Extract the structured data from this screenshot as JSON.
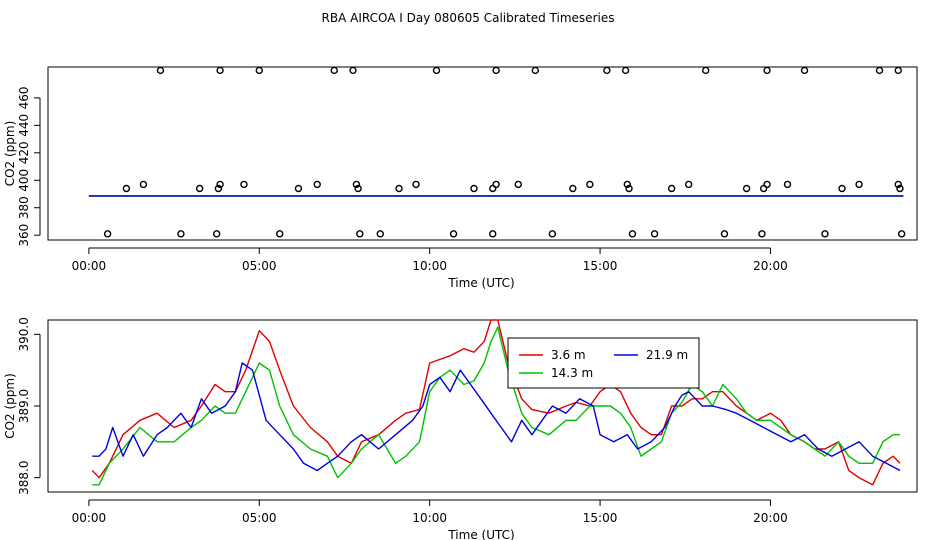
{
  "title": "RBA AIRCOA I  Day 080605  Calibrated Timeseries",
  "chart_data": [
    {
      "type": "scatter",
      "panel": "top",
      "xlabel": "Time (UTC)",
      "ylabel": "CO2 (ppm)",
      "xlim": [
        -1.2,
        24.3
      ],
      "ylim": [
        356.5,
        482.5
      ],
      "x_ticks": [
        {
          "v": 0,
          "label": "00:00"
        },
        {
          "v": 5,
          "label": "05:00"
        },
        {
          "v": 10,
          "label": "10:00"
        },
        {
          "v": 15,
          "label": "15:00"
        },
        {
          "v": 20,
          "label": "20:00"
        }
      ],
      "y_ticks": [
        {
          "v": 360,
          "label": "360"
        },
        {
          "v": 380,
          "label": "380"
        },
        {
          "v": 400,
          "label": "400"
        },
        {
          "v": 420,
          "label": "420"
        },
        {
          "v": 440,
          "label": "440"
        },
        {
          "v": 460,
          "label": "460"
        }
      ],
      "flag_points": [
        [
          2.1,
          480
        ],
        [
          3.85,
          480
        ],
        [
          5.0,
          480
        ],
        [
          7.2,
          480
        ],
        [
          7.75,
          480
        ],
        [
          10.2,
          480
        ],
        [
          11.95,
          480
        ],
        [
          13.1,
          480
        ],
        [
          15.2,
          480
        ],
        [
          15.75,
          480
        ],
        [
          18.1,
          480
        ],
        [
          19.9,
          480
        ],
        [
          21.0,
          480
        ],
        [
          23.2,
          480
        ],
        [
          23.75,
          480
        ],
        [
          1.1,
          394
        ],
        [
          1.6,
          397
        ],
        [
          3.25,
          394
        ],
        [
          3.8,
          394
        ],
        [
          3.85,
          397
        ],
        [
          4.55,
          397
        ],
        [
          6.15,
          394
        ],
        [
          6.7,
          397
        ],
        [
          7.85,
          397
        ],
        [
          7.9,
          394
        ],
        [
          9.1,
          394
        ],
        [
          9.6,
          397
        ],
        [
          11.3,
          394
        ],
        [
          11.85,
          394
        ],
        [
          11.95,
          397
        ],
        [
          12.6,
          397
        ],
        [
          14.2,
          394
        ],
        [
          14.7,
          397
        ],
        [
          15.8,
          397
        ],
        [
          15.85,
          394
        ],
        [
          17.1,
          394
        ],
        [
          17.6,
          397
        ],
        [
          19.3,
          394
        ],
        [
          19.8,
          394
        ],
        [
          19.9,
          397
        ],
        [
          20.5,
          397
        ],
        [
          22.1,
          394
        ],
        [
          22.6,
          397
        ],
        [
          23.75,
          397
        ],
        [
          23.8,
          394
        ],
        [
          0.55,
          361
        ],
        [
          2.7,
          361
        ],
        [
          3.75,
          361
        ],
        [
          5.6,
          361
        ],
        [
          7.95,
          361
        ],
        [
          8.55,
          361
        ],
        [
          10.7,
          361
        ],
        [
          11.85,
          361
        ],
        [
          13.6,
          361
        ],
        [
          15.95,
          361
        ],
        [
          16.6,
          361
        ],
        [
          18.65,
          361
        ],
        [
          19.75,
          361
        ],
        [
          21.6,
          361
        ],
        [
          23.85,
          361
        ]
      ],
      "series": [
        {
          "name": "3.6 m",
          "color": "#e00000",
          "approx_value": 388.6
        },
        {
          "name": "14.3 m",
          "color": "#00c000",
          "approx_value": 388.5
        },
        {
          "name": "21.9 m",
          "color": "#0000e0",
          "approx_value": 388.6
        }
      ]
    },
    {
      "type": "line",
      "panel": "bottom",
      "xlabel": "Time (UTC)",
      "ylabel": "CO2 (ppm)",
      "xlim": [
        -1.2,
        24.3
      ],
      "ylim": [
        387.8,
        390.2
      ],
      "x_ticks": [
        {
          "v": 0,
          "label": "00:00"
        },
        {
          "v": 5,
          "label": "05:00"
        },
        {
          "v": 10,
          "label": "10:00"
        },
        {
          "v": 15,
          "label": "15:00"
        },
        {
          "v": 20,
          "label": "20:00"
        }
      ],
      "y_ticks": [
        {
          "v": 388.0,
          "label": "388.0"
        },
        {
          "v": 389.0,
          "label": "389.0"
        },
        {
          "v": 390.0,
          "label": "390.0"
        }
      ],
      "legend": {
        "position": "top-right",
        "entries": [
          "3.6 m",
          "14.3 m",
          "21.9 m"
        ]
      },
      "series": [
        {
          "name": "3.6 m",
          "color": "#e00000",
          "x": [
            0.1,
            0.3,
            0.6,
            1.0,
            1.5,
            2.0,
            2.5,
            3.0,
            3.3,
            3.7,
            4.0,
            4.3,
            4.6,
            5.0,
            5.3,
            5.6,
            6.0,
            6.5,
            7.0,
            7.3,
            7.7,
            8.0,
            8.5,
            9.0,
            9.3,
            9.7,
            10.0,
            10.3,
            10.6,
            11.0,
            11.3,
            11.6,
            11.8,
            12.0,
            12.3,
            12.7,
            13.0,
            13.5,
            14.0,
            14.3,
            14.7,
            15.0,
            15.3,
            15.6,
            15.9,
            16.2,
            16.5,
            16.8,
            17.1,
            17.4,
            17.7,
            18.0,
            18.3,
            18.6,
            19.0,
            19.3,
            19.6,
            20.0,
            20.3,
            20.6,
            21.0,
            21.3,
            21.6,
            22.0,
            22.3,
            22.6,
            23.0,
            23.3,
            23.6,
            23.8
          ],
          "y": [
            388.1,
            388.0,
            388.2,
            388.6,
            388.8,
            388.9,
            388.7,
            388.8,
            389.0,
            389.3,
            389.2,
            389.2,
            389.5,
            390.05,
            389.9,
            389.5,
            389.0,
            388.7,
            388.5,
            388.3,
            388.2,
            388.5,
            388.6,
            388.8,
            388.9,
            388.95,
            389.6,
            389.65,
            389.7,
            389.8,
            389.75,
            389.9,
            390.2,
            390.2,
            389.6,
            389.1,
            388.95,
            388.9,
            389.0,
            389.05,
            389.0,
            389.2,
            389.3,
            389.2,
            388.9,
            388.7,
            388.6,
            388.6,
            389.0,
            389.0,
            389.1,
            389.1,
            389.2,
            389.2,
            389.0,
            388.9,
            388.8,
            388.9,
            388.8,
            388.6,
            388.5,
            388.4,
            388.4,
            388.5,
            388.1,
            388.0,
            387.9,
            388.2,
            388.3,
            388.2
          ]
        },
        {
          "name": "14.3 m",
          "color": "#00c000",
          "x": [
            0.1,
            0.3,
            0.6,
            1.0,
            1.5,
            2.0,
            2.5,
            3.0,
            3.3,
            3.7,
            4.0,
            4.3,
            4.6,
            5.0,
            5.3,
            5.6,
            6.0,
            6.5,
            7.0,
            7.3,
            7.7,
            8.0,
            8.5,
            9.0,
            9.3,
            9.7,
            10.0,
            10.3,
            10.6,
            11.0,
            11.3,
            11.6,
            11.8,
            12.0,
            12.3,
            12.7,
            13.0,
            13.5,
            14.0,
            14.3,
            14.7,
            15.0,
            15.3,
            15.6,
            15.9,
            16.2,
            16.5,
            16.8,
            17.1,
            17.4,
            17.7,
            18.0,
            18.3,
            18.6,
            19.0,
            19.3,
            19.6,
            20.0,
            20.3,
            20.6,
            21.0,
            21.3,
            21.6,
            22.0,
            22.3,
            22.6,
            23.0,
            23.3,
            23.6,
            23.8
          ],
          "y": [
            387.9,
            387.9,
            388.2,
            388.4,
            388.7,
            388.5,
            388.5,
            388.7,
            388.8,
            389.0,
            388.9,
            388.9,
            389.2,
            389.6,
            389.5,
            389.0,
            388.6,
            388.4,
            388.3,
            388.0,
            388.2,
            388.4,
            388.6,
            388.2,
            388.3,
            388.5,
            389.2,
            389.4,
            389.5,
            389.3,
            389.35,
            389.6,
            389.9,
            390.1,
            389.5,
            388.9,
            388.7,
            388.6,
            388.8,
            388.8,
            389.0,
            389.0,
            389.0,
            388.9,
            388.7,
            388.3,
            388.4,
            388.5,
            388.9,
            389.05,
            389.3,
            389.2,
            389.0,
            389.3,
            389.1,
            388.9,
            388.8,
            388.8,
            388.7,
            388.6,
            388.5,
            388.4,
            388.3,
            388.5,
            388.3,
            388.2,
            388.2,
            388.5,
            388.6,
            388.6
          ]
        },
        {
          "name": "21.9 m",
          "color": "#0000e0",
          "x": [
            0.1,
            0.3,
            0.5,
            0.7,
            1.0,
            1.3,
            1.6,
            2.0,
            2.3,
            2.7,
            3.0,
            3.3,
            3.6,
            4.0,
            4.3,
            4.5,
            4.8,
            5.2,
            5.6,
            6.0,
            6.3,
            6.7,
            7.0,
            7.3,
            7.7,
            8.0,
            8.5,
            9.0,
            9.5,
            9.8,
            10.0,
            10.3,
            10.6,
            10.9,
            11.2,
            11.5,
            11.8,
            12.1,
            12.4,
            12.7,
            13.0,
            13.3,
            13.6,
            14.0,
            14.4,
            14.8,
            15.0,
            15.4,
            15.8,
            16.1,
            16.5,
            16.9,
            17.2,
            17.4,
            17.6,
            17.8,
            18.0,
            18.3,
            18.7,
            19.0,
            19.4,
            19.8,
            20.2,
            20.6,
            21.0,
            21.4,
            21.8,
            22.2,
            22.6,
            23.0,
            23.4,
            23.8
          ],
          "y": [
            388.3,
            388.3,
            388.4,
            388.7,
            388.3,
            388.6,
            388.3,
            388.6,
            388.7,
            388.9,
            388.7,
            389.1,
            388.9,
            389.0,
            389.2,
            389.6,
            389.5,
            388.8,
            388.6,
            388.4,
            388.2,
            388.1,
            388.2,
            388.3,
            388.5,
            388.6,
            388.4,
            388.6,
            388.8,
            389.0,
            389.3,
            389.4,
            389.2,
            389.5,
            389.3,
            389.1,
            388.9,
            388.7,
            388.5,
            388.8,
            388.6,
            388.8,
            389.0,
            388.9,
            389.1,
            389.0,
            388.6,
            388.5,
            388.6,
            388.4,
            388.5,
            388.7,
            389.0,
            389.15,
            389.2,
            389.1,
            389.0,
            389.0,
            388.95,
            388.9,
            388.8,
            388.7,
            388.6,
            388.5,
            388.6,
            388.4,
            388.3,
            388.4,
            388.5,
            388.3,
            388.2,
            388.1
          ]
        }
      ]
    }
  ]
}
